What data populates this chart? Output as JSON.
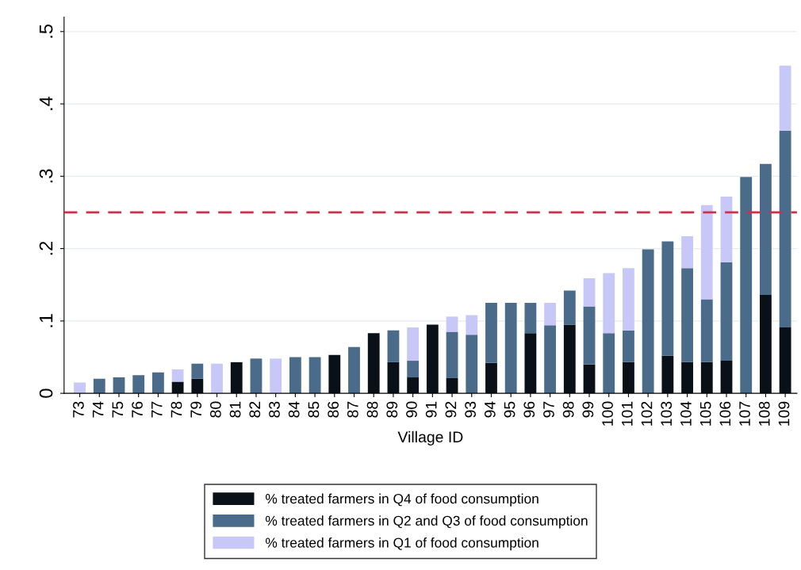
{
  "chart_data": {
    "type": "bar",
    "stacked": true,
    "xlabel": "Village ID",
    "categories": [
      "73",
      "74",
      "75",
      "76",
      "77",
      "78",
      "79",
      "80",
      "81",
      "82",
      "83",
      "84",
      "85",
      "86",
      "87",
      "88",
      "89",
      "90",
      "91",
      "92",
      "93",
      "94",
      "95",
      "96",
      "97",
      "98",
      "99",
      "100",
      "101",
      "102",
      "103",
      "104",
      "105",
      "106",
      "107",
      "108",
      "109"
    ],
    "series": [
      {
        "name": "% treated farmers in Q4 of food consumption",
        "color": "#0a1018",
        "values": [
          0,
          0,
          0,
          0,
          0,
          0.016,
          0.02,
          0,
          0.043,
          0,
          0,
          0,
          0,
          0.053,
          0,
          0.083,
          0.043,
          0.022,
          0.095,
          0.021,
          0,
          0.042,
          0,
          0.083,
          0,
          0.095,
          0.04,
          0,
          0.043,
          0,
          0.052,
          0.043,
          0.043,
          0.045,
          0,
          0.136,
          0.091
        ]
      },
      {
        "name": "% treated farmers in Q2 and Q3 of food consumption",
        "color": "#4a6b8a",
        "values": [
          0,
          0.02,
          0.022,
          0.025,
          0.029,
          0,
          0.021,
          0,
          0,
          0.048,
          0,
          0.05,
          0.05,
          0,
          0.064,
          0,
          0.044,
          0.023,
          0,
          0.064,
          0.081,
          0.083,
          0.125,
          0.042,
          0.094,
          0.047,
          0.08,
          0.083,
          0.044,
          0.199,
          0.158,
          0.13,
          0.087,
          0.136,
          0.299,
          0.181,
          0.272
        ]
      },
      {
        "name": "% treated farmers in Q1 of food consumption",
        "color": "#c8c8f8",
        "values": [
          0.015,
          0,
          0,
          0,
          0,
          0.017,
          0,
          0.041,
          0,
          0,
          0.048,
          0,
          0,
          0,
          0,
          0,
          0,
          0.046,
          0,
          0.021,
          0.027,
          0,
          0,
          0,
          0.031,
          0,
          0.039,
          0.083,
          0.086,
          0,
          0,
          0.044,
          0.13,
          0.091,
          0,
          0,
          0.09
        ]
      }
    ],
    "ylim": [
      0,
      0.52
    ],
    "yticks": [
      0,
      {
        "value": 0.1,
        "label": ".1"
      },
      {
        "value": 0.2,
        "label": ".2"
      },
      {
        "value": 0.3,
        "label": ".3"
      },
      {
        "value": 0.4,
        "label": ".4"
      },
      {
        "value": 0.5,
        "label": ".5"
      }
    ],
    "ref_lines": [
      {
        "axis": "y",
        "value": 0.25,
        "color": "#d0304a",
        "line_style": "dashed"
      }
    ],
    "grid": "y",
    "legend": "bottom"
  }
}
